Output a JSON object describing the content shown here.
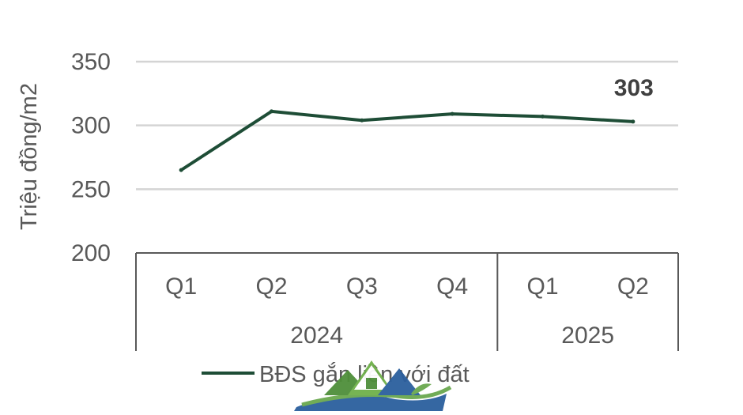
{
  "chart_data": {
    "type": "line",
    "ylabel": "Triệu đồng/m2",
    "ylim": [
      200,
      350
    ],
    "yticks": [
      200,
      250,
      300,
      350
    ],
    "grid": true,
    "x_groups": [
      {
        "label": "2024",
        "categories": [
          "Q1",
          "Q2",
          "Q3",
          "Q4"
        ]
      },
      {
        "label": "2025",
        "categories": [
          "Q1",
          "Q2"
        ]
      }
    ],
    "categories": [
      "Q1",
      "Q2",
      "Q3",
      "Q4",
      "Q1",
      "Q2"
    ],
    "series": [
      {
        "name": "BĐS gắn liền với đất",
        "color": "#1e4d36",
        "values": [
          265,
          311,
          304,
          309,
          307,
          303
        ]
      }
    ],
    "annotation": {
      "text": "303",
      "index": 5
    },
    "legend_position": "bottom",
    "colors": {
      "line": "#1e4d36",
      "grid": "#d4d4d4",
      "axis": "#595959",
      "text": "#595959",
      "annotation": "#404040"
    }
  },
  "watermark": {
    "name": "house-logo"
  }
}
